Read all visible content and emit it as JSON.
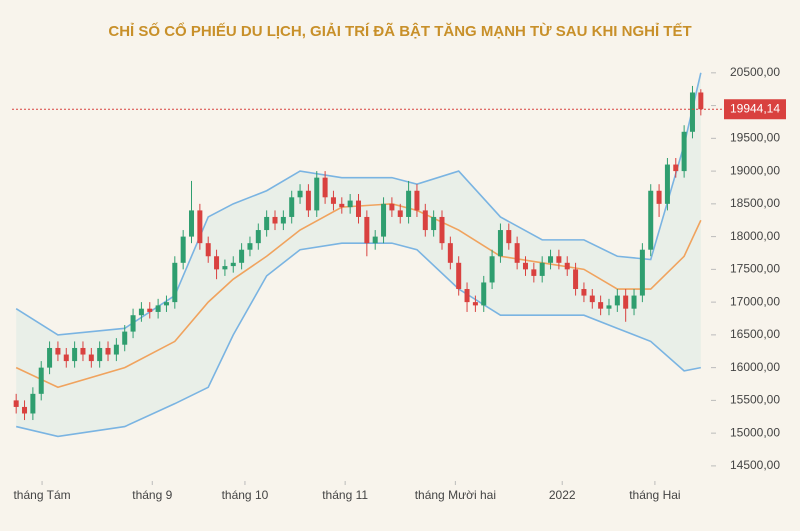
{
  "chart_data": {
    "type": "candlestick",
    "title": "CHỈ SỐ CỔ PHIẾU DU LỊCH, GIẢI TRÍ ĐÃ BẬT TĂNG MẠNH TỪ SAU KHI NGHỈ TẾT",
    "x": [
      0,
      1,
      2,
      3,
      4,
      5,
      6,
      7,
      8,
      9,
      10,
      11,
      12,
      13,
      14,
      15,
      16,
      17,
      18,
      19,
      20,
      21,
      22,
      23,
      24,
      25,
      26,
      27,
      28,
      29,
      30,
      31,
      32,
      33,
      34,
      35,
      36,
      37,
      38,
      39,
      40,
      41,
      42,
      43,
      44,
      45,
      46,
      47,
      48,
      49,
      50,
      51,
      52,
      53,
      54,
      55,
      56,
      57,
      58,
      59,
      60,
      61,
      62,
      63,
      64,
      65,
      66,
      67,
      68,
      69,
      70,
      71,
      72,
      73,
      74,
      75,
      76,
      77,
      78,
      79,
      80,
      81,
      82
    ],
    "open": [
      15500,
      15400,
      15300,
      15600,
      16000,
      16300,
      16200,
      16100,
      16300,
      16200,
      16100,
      16300,
      16200,
      16350,
      16550,
      16800,
      16900,
      16850,
      16950,
      17000,
      17600,
      18000,
      18400,
      17900,
      17700,
      17500,
      17550,
      17600,
      17800,
      17900,
      18100,
      18300,
      18200,
      18300,
      18600,
      18700,
      18400,
      18900,
      18600,
      18500,
      18450,
      18550,
      18300,
      17900,
      18000,
      18500,
      18400,
      18300,
      18700,
      18400,
      18100,
      18300,
      17900,
      17600,
      17200,
      17000,
      16950,
      17300,
      17700,
      18100,
      17900,
      17600,
      17500,
      17400,
      17600,
      17700,
      17600,
      17500,
      17200,
      17100,
      17000,
      16900,
      16950,
      17100,
      16900,
      17100,
      17800,
      18700,
      18500,
      19100,
      19000,
      19600,
      20200
    ],
    "close": [
      15400,
      15300,
      15600,
      16000,
      16300,
      16200,
      16100,
      16300,
      16200,
      16100,
      16300,
      16200,
      16350,
      16550,
      16800,
      16900,
      16850,
      16950,
      17000,
      17600,
      18000,
      18400,
      17900,
      17700,
      17500,
      17550,
      17600,
      17800,
      17900,
      18100,
      18300,
      18200,
      18300,
      18600,
      18700,
      18400,
      18900,
      18600,
      18500,
      18450,
      18550,
      18300,
      17900,
      18000,
      18500,
      18400,
      18300,
      18700,
      18400,
      18100,
      18300,
      17900,
      17600,
      17200,
      17000,
      16950,
      17300,
      17700,
      18100,
      17900,
      17600,
      17500,
      17400,
      17600,
      17700,
      17600,
      17500,
      17200,
      17100,
      17000,
      16900,
      16950,
      17100,
      16900,
      17100,
      17800,
      18700,
      18500,
      19100,
      19000,
      19600,
      20200,
      19944.14
    ],
    "high": [
      15600,
      15500,
      15700,
      16100,
      16400,
      16400,
      16300,
      16400,
      16400,
      16300,
      16400,
      16400,
      16450,
      16650,
      16900,
      17000,
      17000,
      17050,
      17100,
      17700,
      18100,
      18850,
      18500,
      18000,
      17800,
      17650,
      17700,
      17900,
      18000,
      18200,
      18400,
      18400,
      18400,
      18700,
      18800,
      18800,
      19000,
      19000,
      18700,
      18600,
      18650,
      18650,
      18400,
      18100,
      18600,
      18600,
      18500,
      18850,
      18800,
      18500,
      18400,
      18400,
      18000,
      17700,
      17300,
      17100,
      17400,
      17800,
      18200,
      18200,
      18000,
      17700,
      17600,
      17700,
      17800,
      17800,
      17700,
      17600,
      17300,
      17200,
      17100,
      17050,
      17200,
      17200,
      17200,
      17900,
      18800,
      18800,
      19200,
      19200,
      19700,
      20300,
      20250
    ],
    "low": [
      15300,
      15200,
      15200,
      15500,
      15900,
      16100,
      16000,
      16000,
      16100,
      16000,
      16000,
      16100,
      16100,
      16250,
      16450,
      16700,
      16750,
      16750,
      16850,
      16900,
      17500,
      17900,
      17800,
      17600,
      17350,
      17400,
      17450,
      17500,
      17700,
      17800,
      18000,
      18100,
      18100,
      18200,
      18500,
      18300,
      18300,
      18500,
      18400,
      18350,
      18350,
      18200,
      17700,
      17800,
      17900,
      18300,
      18200,
      18200,
      18300,
      18000,
      18000,
      17800,
      17500,
      17100,
      16850,
      16850,
      16850,
      17200,
      17600,
      17800,
      17500,
      17400,
      17300,
      17300,
      17500,
      17500,
      17400,
      17100,
      17000,
      16900,
      16800,
      16800,
      16850,
      16700,
      16800,
      17000,
      17700,
      18300,
      18400,
      18900,
      18900,
      19500,
      19850
    ],
    "up_color": "#2f9e6f",
    "down_color": "#d9413f",
    "bands": {
      "x": [
        0,
        5,
        13,
        19,
        23,
        26,
        30,
        34,
        39,
        45,
        48,
        53,
        58,
        63,
        68,
        72,
        76,
        80,
        82
      ],
      "upper": [
        16900,
        16500,
        16600,
        17100,
        18300,
        18500,
        18700,
        19000,
        18900,
        18900,
        18800,
        19000,
        18300,
        17950,
        17950,
        17700,
        17650,
        19400,
        20500
      ],
      "middle": [
        16000,
        15700,
        16000,
        16400,
        17000,
        17350,
        17700,
        18100,
        18450,
        18500,
        18400,
        18100,
        17700,
        17600,
        17500,
        17200,
        17200,
        17700,
        18250
      ],
      "lower": [
        15100,
        14950,
        15100,
        15450,
        15700,
        16500,
        17400,
        17800,
        17900,
        17900,
        17800,
        17200,
        16800,
        16800,
        16800,
        16600,
        16400,
        15950,
        16000
      ],
      "band_color": "#7ab4e2",
      "middle_color": "#f0a35e",
      "fill": "#e9efe8"
    },
    "reference_line": {
      "value": 19944.14,
      "label": "19944,14",
      "color": "#d9413f"
    },
    "xlim": [
      -0.5,
      82.5
    ],
    "xticks": [
      {
        "value": 3.1,
        "label": "tháng Tám"
      },
      {
        "value": 16.3,
        "label": "tháng 9"
      },
      {
        "value": 27.4,
        "label": "tháng 10"
      },
      {
        "value": 39.4,
        "label": "tháng 11"
      },
      {
        "value": 52.6,
        "label": "tháng Mười hai"
      },
      {
        "value": 65.4,
        "label": "2022"
      },
      {
        "value": 76.5,
        "label": "tháng Hai"
      }
    ],
    "ylim": [
      14300,
      20650
    ],
    "yticks": [
      {
        "value": 14500,
        "label": "14500,00"
      },
      {
        "value": 15000,
        "label": "15000,00"
      },
      {
        "value": 15500,
        "label": "15500,00"
      },
      {
        "value": 16000,
        "label": "16000,00"
      },
      {
        "value": 16500,
        "label": "16500,00"
      },
      {
        "value": 17000,
        "label": "17000,00"
      },
      {
        "value": 17500,
        "label": "17500,00"
      },
      {
        "value": 18000,
        "label": "18000,00"
      },
      {
        "value": 18500,
        "label": "18500,00"
      },
      {
        "value": 19000,
        "label": "19000,00"
      },
      {
        "value": 19500,
        "label": "19500,00"
      },
      {
        "value": 20000,
        "label": "20000,00"
      },
      {
        "value": 20500,
        "label": "20500,00"
      }
    ]
  }
}
